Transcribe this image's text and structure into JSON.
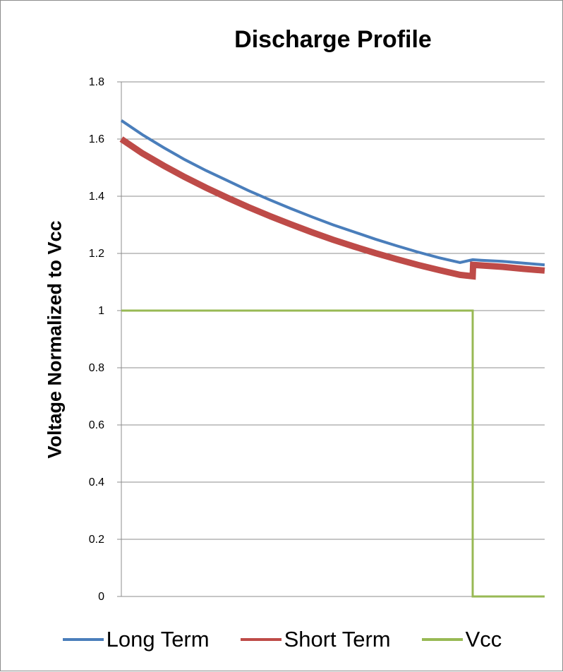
{
  "chart_data": {
    "type": "line",
    "title": "Discharge Profile",
    "xlabel": "",
    "ylabel": "Voltage Normalized to Vcc",
    "x_axis": "unlabeled, normalized 0 to 1",
    "xlim": [
      0,
      1
    ],
    "ylim": [
      0,
      1.8
    ],
    "yticks": [
      "0",
      "0.2",
      "0.4",
      "0.6",
      "0.8",
      "1",
      "1.2",
      "1.4",
      "1.6",
      "1.8"
    ],
    "grid": "horizontal",
    "legend": "bottom",
    "series": [
      {
        "name": "Long Term",
        "color": "#4a7ebb",
        "x": [
          0,
          0.05,
          0.1,
          0.15,
          0.2,
          0.25,
          0.3,
          0.35,
          0.4,
          0.45,
          0.5,
          0.55,
          0.6,
          0.65,
          0.7,
          0.75,
          0.8,
          0.83,
          0.85,
          0.9,
          0.95,
          1.0
        ],
        "values": [
          1.665,
          1.615,
          1.57,
          1.528,
          1.49,
          1.455,
          1.42,
          1.388,
          1.357,
          1.328,
          1.3,
          1.275,
          1.25,
          1.227,
          1.205,
          1.185,
          1.168,
          1.178,
          1.176,
          1.172,
          1.166,
          1.16
        ]
      },
      {
        "name": "Short Term",
        "color": "#be4b48",
        "x": [
          0,
          0.05,
          0.1,
          0.15,
          0.2,
          0.25,
          0.3,
          0.35,
          0.4,
          0.45,
          0.5,
          0.55,
          0.6,
          0.65,
          0.7,
          0.75,
          0.8,
          0.83,
          0.831,
          0.85,
          0.9,
          0.95,
          1.0
        ],
        "values": [
          1.6,
          1.55,
          1.507,
          1.467,
          1.43,
          1.395,
          1.362,
          1.331,
          1.302,
          1.274,
          1.248,
          1.224,
          1.201,
          1.18,
          1.16,
          1.142,
          1.125,
          1.12,
          1.16,
          1.158,
          1.153,
          1.146,
          1.14
        ]
      },
      {
        "name": "Vcc",
        "color": "#98b954",
        "x": [
          0,
          0.83,
          0.83,
          1.0
        ],
        "values": [
          1,
          1,
          0,
          0
        ]
      }
    ]
  }
}
